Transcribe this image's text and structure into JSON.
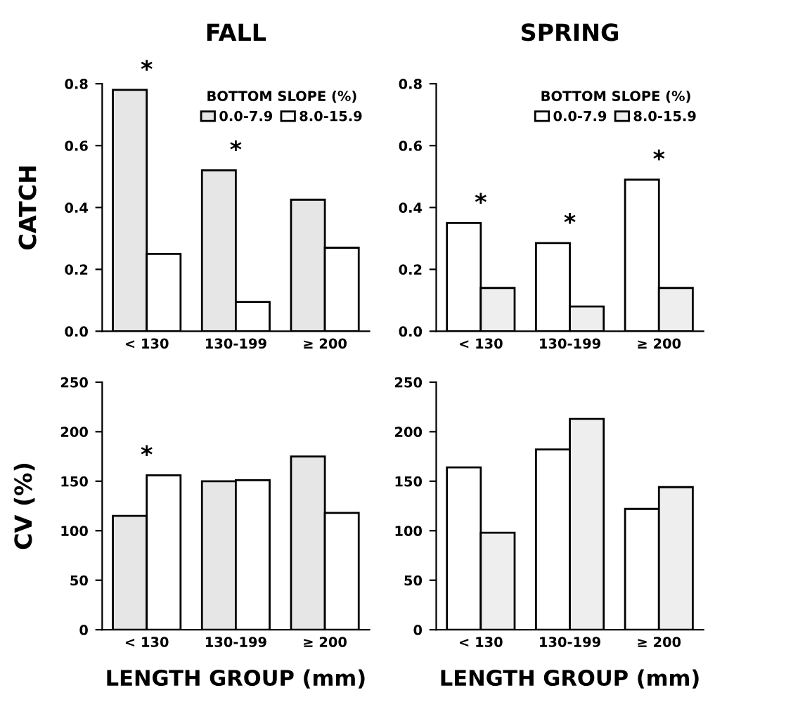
{
  "chart_data": [
    {
      "type": "bar",
      "title": "FALL",
      "ylabel": "CATCH",
      "categories": [
        "< 130",
        "130-199",
        "≥ 200"
      ],
      "series": [
        {
          "name": "0.0-7.9",
          "color": "#e6e6e6",
          "values": [
            0.78,
            0.52,
            0.425
          ]
        },
        {
          "name": "8.0-15.9",
          "color": "#ffffff",
          "values": [
            0.25,
            0.095,
            0.27
          ]
        }
      ],
      "legend_title": "BOTTOM SLOPE (%)",
      "legend": "top right",
      "ylim": [
        0,
        0.8
      ],
      "yticks": [
        {
          "value": 0,
          "label": "0.0"
        },
        {
          "value": 0.2,
          "label": "0.2"
        },
        {
          "value": 0.4,
          "label": "0.4"
        },
        {
          "value": 0.6,
          "label": "0.6"
        },
        {
          "value": 0.8,
          "label": "0.8"
        }
      ],
      "annotations": [
        {
          "text": "*",
          "x": "< 130",
          "y": 0.78
        },
        {
          "text": "*",
          "x": "130-199",
          "y": 0.52
        }
      ]
    },
    {
      "type": "bar",
      "title": "SPRING",
      "categories": [
        "< 130",
        "130-199",
        "≥ 200"
      ],
      "series": [
        {
          "name": "0.0-7.9",
          "color": "#ffffff",
          "values": [
            0.35,
            0.285,
            0.49
          ]
        },
        {
          "name": "8.0-15.9",
          "color": "#eeeeee",
          "values": [
            0.14,
            0.08,
            0.14
          ]
        }
      ],
      "legend_title": "BOTTOM SLOPE (%)",
      "legend": "top right",
      "ylim": [
        0,
        0.8
      ],
      "yticks": [
        {
          "value": 0,
          "label": "0.0"
        },
        {
          "value": 0.2,
          "label": "0.2"
        },
        {
          "value": 0.4,
          "label": "0.4"
        },
        {
          "value": 0.6,
          "label": "0.6"
        },
        {
          "value": 0.8,
          "label": "0.8"
        }
      ],
      "annotations": [
        {
          "text": "*",
          "x": "< 130",
          "y": 0.35
        },
        {
          "text": "*",
          "x": "130-199",
          "y": 0.285
        },
        {
          "text": "*",
          "x": "≥ 200",
          "y": 0.49
        }
      ]
    },
    {
      "type": "bar",
      "ylabel": "CV (%)",
      "xlabel": "LENGTH GROUP (mm)",
      "categories": [
        "< 130",
        "130-199",
        "≥ 200"
      ],
      "series": [
        {
          "color": "#e6e6e6",
          "values": [
            115,
            150,
            175
          ]
        },
        {
          "color": "#ffffff",
          "values": [
            156,
            151,
            118
          ]
        }
      ],
      "ylim": [
        0,
        250
      ],
      "yticks": [
        0,
        50,
        100,
        150,
        200,
        250
      ],
      "annotations": [
        {
          "text": "*",
          "x": "< 130",
          "y": 156
        }
      ]
    },
    {
      "type": "bar",
      "xlabel": "LENGTH GROUP (mm)",
      "categories": [
        "< 130",
        "130-199",
        "≥ 200"
      ],
      "series": [
        {
          "color": "#ffffff",
          "values": [
            164,
            182,
            122
          ]
        },
        {
          "color": "#eeeeee",
          "values": [
            98,
            213,
            144
          ]
        }
      ],
      "ylim": [
        0,
        250
      ],
      "yticks": [
        0,
        50,
        100,
        150,
        200,
        250
      ]
    }
  ]
}
